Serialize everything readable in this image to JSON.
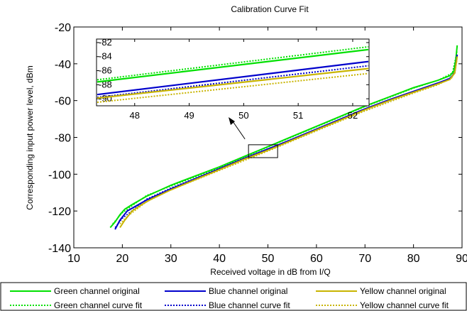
{
  "chart_data": {
    "type": "line",
    "title": "Calibration Curve Fit",
    "xlabel": "Received voltage in dB from I/Q",
    "ylabel": "Corresponding input power level, dBm",
    "xlim": [
      10,
      90
    ],
    "ylim": [
      -140,
      -20
    ],
    "xticks": [
      10,
      20,
      30,
      40,
      50,
      60,
      70,
      80,
      90
    ],
    "yticks": [
      -140,
      -120,
      -100,
      -80,
      -60,
      -40,
      -20
    ],
    "grid": false,
    "series": [
      {
        "name": "Green channel original",
        "color": "#00e000",
        "style": "solid",
        "x": [
          17.5,
          18.5,
          19.5,
          20.5,
          22,
          25,
          30,
          35,
          40,
          45,
          50,
          55,
          60,
          65,
          70,
          75,
          80,
          85,
          87.5,
          88.3,
          88.7,
          89.0
        ],
        "y": [
          -129,
          -126,
          -122,
          -119,
          -116.5,
          -112,
          -106,
          -101,
          -96,
          -90.5,
          -85,
          -79.5,
          -74,
          -68.5,
          -63,
          -58,
          -53,
          -49,
          -46.5,
          -44,
          -38,
          -30
        ]
      },
      {
        "name": "Green channel curve fit",
        "color": "#00e000",
        "style": "dotted",
        "x": [
          18,
          20,
          25,
          30,
          40,
          50,
          60,
          70,
          80,
          85,
          88,
          89
        ],
        "y": [
          -127,
          -121,
          -111.5,
          -106.5,
          -96.5,
          -85.3,
          -74.3,
          -63.3,
          -53.3,
          -49,
          -45,
          -33
        ]
      },
      {
        "name": "Blue channel original",
        "color": "#0000cc",
        "style": "solid",
        "x": [
          18.5,
          19.5,
          21,
          23,
          25,
          30,
          35,
          40,
          45,
          50,
          55,
          60,
          65,
          70,
          75,
          80,
          85,
          87.5,
          88.5,
          89.0
        ],
        "y": [
          -130,
          -125,
          -120,
          -117,
          -114,
          -108,
          -102.5,
          -97,
          -91.5,
          -86.3,
          -81,
          -75.5,
          -70,
          -64.5,
          -59.5,
          -55,
          -50.5,
          -48,
          -45,
          -35
        ]
      },
      {
        "name": "Blue channel curve fit",
        "color": "#0000cc",
        "style": "dotted",
        "x": [
          18.5,
          20,
          25,
          30,
          40,
          50,
          60,
          70,
          80,
          85,
          88,
          89
        ],
        "y": [
          -129,
          -124,
          -113.5,
          -107.5,
          -97,
          -86.5,
          -75.8,
          -65,
          -55.3,
          -51,
          -47,
          -37
        ]
      },
      {
        "name": "Yellow channel original",
        "color": "#c8b400",
        "style": "solid",
        "x": [
          19.5,
          20.5,
          22,
          24,
          26,
          30,
          35,
          40,
          45,
          50,
          55,
          60,
          65,
          70,
          75,
          80,
          85,
          87.5,
          88.5,
          89.0
        ],
        "y": [
          -129,
          -125,
          -120,
          -116.5,
          -113.5,
          -108.5,
          -103,
          -97.5,
          -92,
          -87,
          -81.5,
          -76,
          -70.5,
          -65,
          -60,
          -55.5,
          -51,
          -48.5,
          -45,
          -36
        ]
      },
      {
        "name": "Yellow channel curve fit",
        "color": "#c8b400",
        "style": "dotted",
        "x": [
          19.5,
          21,
          25,
          30,
          40,
          50,
          60,
          70,
          80,
          85,
          88,
          89
        ],
        "y": [
          -127,
          -123,
          -115,
          -108.5,
          -98,
          -87.5,
          -76.5,
          -65.7,
          -56,
          -51.5,
          -47.5,
          -38
        ]
      }
    ],
    "inset": {
      "xlim": [
        47.3,
        52.3
      ],
      "ylim": [
        -91,
        -81.5
      ],
      "xticks": [
        48,
        49,
        50,
        51,
        52
      ],
      "yticks": [
        -90,
        -88,
        -86,
        -84,
        -82
      ],
      "lines": [
        {
          "color": "#00e000",
          "style": "solid",
          "y0": -87.6,
          "y1": -83.0
        },
        {
          "color": "#00e000",
          "style": "dotted",
          "y0": -87.3,
          "y1": -82.6
        },
        {
          "color": "#0000cc",
          "style": "solid",
          "y0": -89.4,
          "y1": -84.7
        },
        {
          "color": "#0000cc",
          "style": "dotted",
          "y0": -89.8,
          "y1": -85.3
        },
        {
          "color": "#c8b400",
          "style": "solid",
          "y0": -89.9,
          "y1": -85.7
        },
        {
          "color": "#c8b400",
          "style": "dotted",
          "y0": -90.5,
          "y1": -86.4
        }
      ],
      "zoom_box": {
        "x": [
          46,
          52
        ],
        "y": [
          -91,
          -84
        ]
      }
    }
  }
}
